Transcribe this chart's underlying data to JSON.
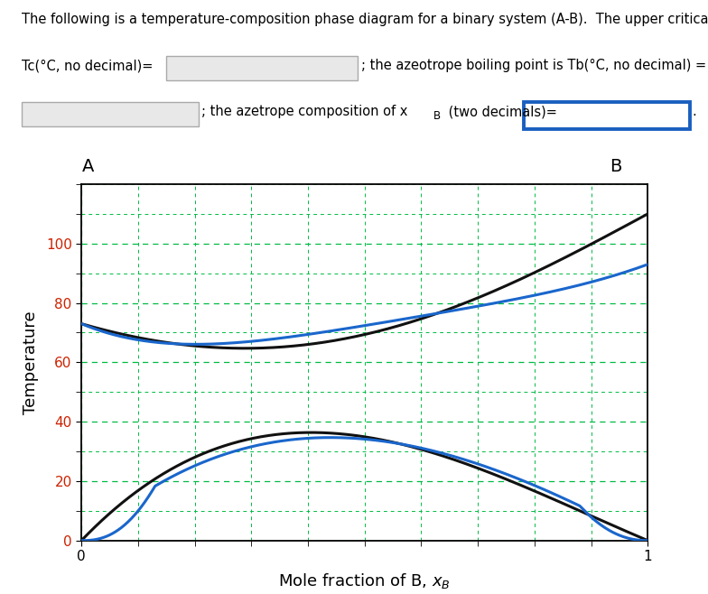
{
  "xlabel": "Mole fraction of B, $x_B$",
  "ylabel": "Temperature",
  "label_A": "A",
  "label_B": "B",
  "yticks": [
    0,
    20,
    40,
    60,
    80,
    100
  ],
  "xticks": [
    0,
    1
  ],
  "ylim": [
    0,
    120
  ],
  "xlim": [
    0,
    1
  ],
  "grid_color": "#00bb44",
  "tick_color": "#cc2200",
  "curve_blue_color": "#1a66cc",
  "curve_black_color": "#111111",
  "figsize": [
    7.84,
    6.58
  ],
  "dpi": 100,
  "line1": "The following is a temperature-composition phase diagram for a binary system (A-B).  The upper critical temperature",
  "line2a": "Tc(",
  "line2b": "°C, no decimal)=",
  "line2c": "; the azeotrope boiling point is Tb(",
  "line2d": "°C, no decimal) =",
  "line3a": "; the azetrope composition of x",
  "line3b": "B",
  "line3c": " (two decimals)=",
  "text_fontsize": 10.5
}
